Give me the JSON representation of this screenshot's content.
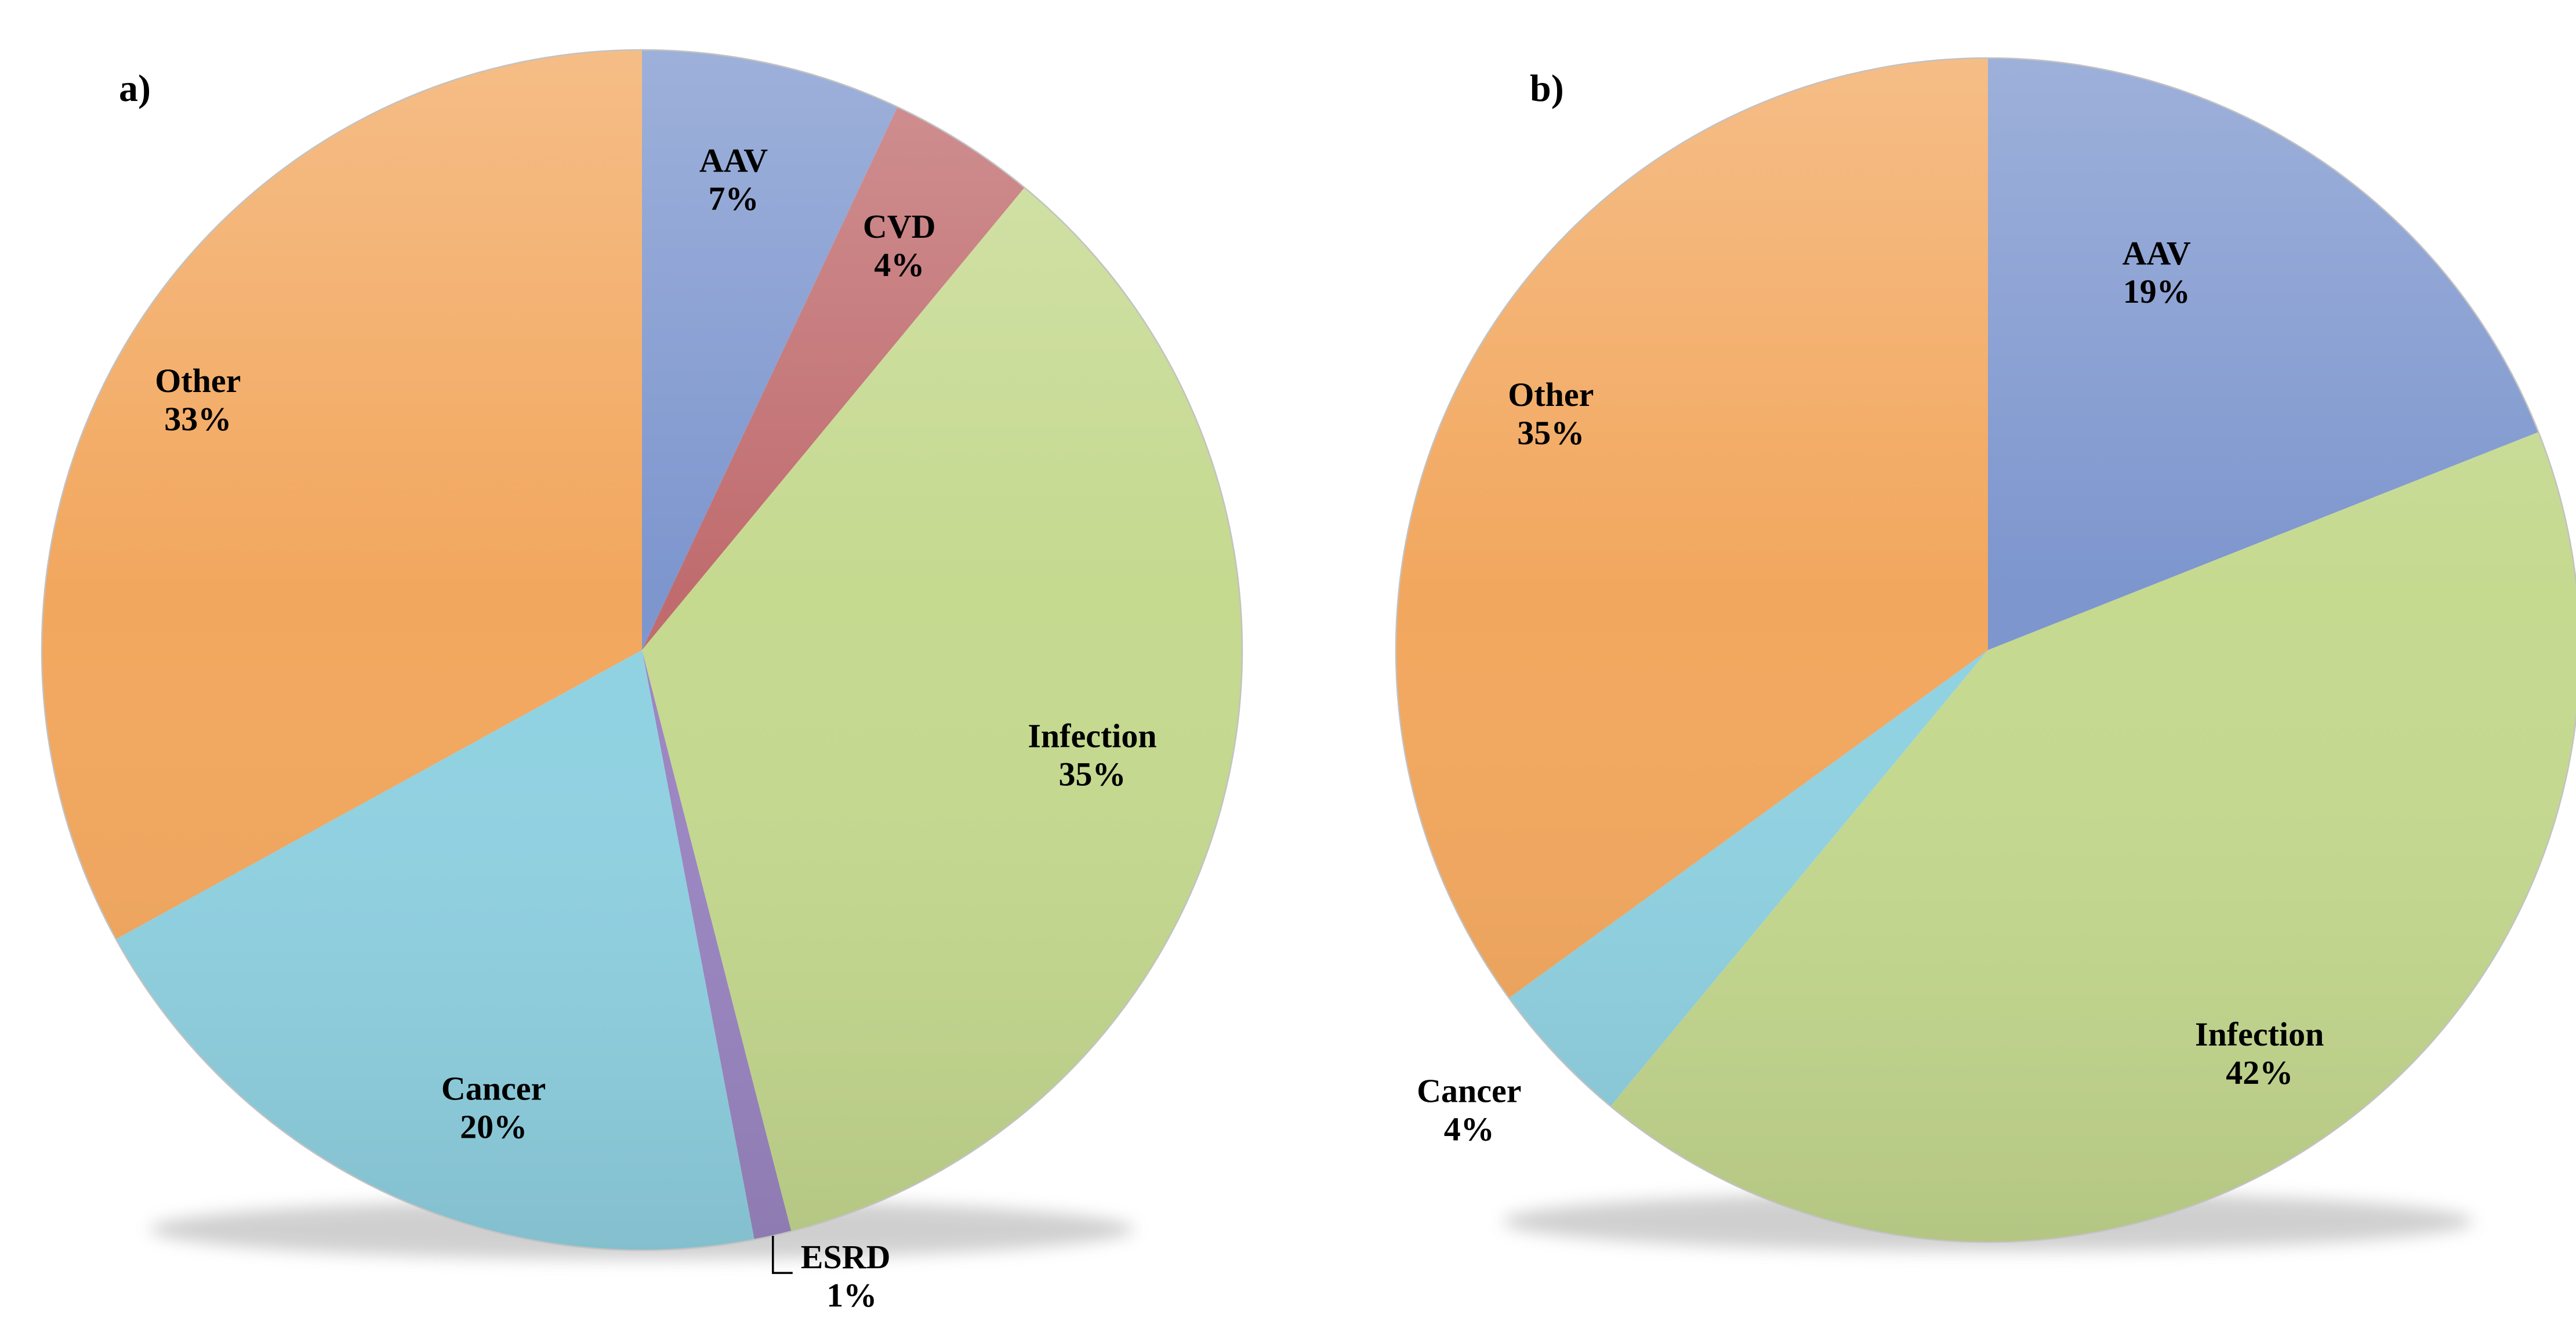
{
  "figure": {
    "background": "#ffffff",
    "text_color": "#000000"
  },
  "chart_data": [
    {
      "type": "pie",
      "id": "a",
      "panel_label": "a)",
      "title": "",
      "legend": "none",
      "start_angle_deg": 0,
      "direction": "clockwise",
      "slices": [
        {
          "label": "AAV",
          "value": 7,
          "pct_label": "7%",
          "color": "#7D96CE",
          "label_theta": 11,
          "label_r": 0.8,
          "label_placement": "inside"
        },
        {
          "label": "CVD",
          "value": 4,
          "pct_label": "4%",
          "color": "#C06C6E",
          "label_theta": 32.4,
          "label_r": 0.8,
          "label_placement": "inside-edge"
        },
        {
          "label": "Infection",
          "value": 35,
          "pct_label": "35%",
          "color": "#C5D98F",
          "label_theta": 103,
          "label_r": 0.77,
          "label_placement": "inside"
        },
        {
          "label": "ESRD",
          "value": 1,
          "pct_label": "1%",
          "color": "#9B86C2",
          "label_placement": "callout",
          "callout": {
            "theta": 167.4,
            "drop": 64,
            "run": 34
          }
        },
        {
          "label": "Cancer",
          "value": 20,
          "pct_label": "20%",
          "color": "#90D2E2",
          "label_theta": 198,
          "label_r": 0.8,
          "label_placement": "inside"
        },
        {
          "label": "Other",
          "value": 33,
          "pct_label": "33%",
          "color": "#F2A75E",
          "label_theta": 299.5,
          "label_r": 0.85,
          "label_placement": "inside"
        }
      ],
      "layout": {
        "center": [
          1107,
          1121
        ],
        "radius": 1035
      }
    },
    {
      "type": "pie",
      "id": "b",
      "panel_label": "b)",
      "title": "",
      "legend": "none",
      "start_angle_deg": 0,
      "direction": "clockwise",
      "slices": [
        {
          "label": "AAV",
          "value": 19,
          "pct_label": "19%",
          "color": "#7D96CE",
          "label_theta": 24,
          "label_r": 0.7,
          "label_placement": "inside"
        },
        {
          "label": "Infection",
          "value": 42,
          "pct_label": "42%",
          "color": "#C5D98F",
          "label_theta": 146,
          "label_r": 0.82,
          "label_placement": "inside"
        },
        {
          "label": "Cancer",
          "value": 4,
          "pct_label": "4%",
          "color": "#90D2E2",
          "label_theta": 228.5,
          "label_r": 1.17,
          "label_placement": "outside"
        },
        {
          "label": "Other",
          "value": 35,
          "pct_label": "35%",
          "color": "#F2A75E",
          "label_theta": 298.5,
          "label_r": 0.84,
          "label_placement": "inside"
        }
      ],
      "layout": {
        "center": [
          3428,
          1121
        ],
        "radius": 1021
      }
    }
  ]
}
